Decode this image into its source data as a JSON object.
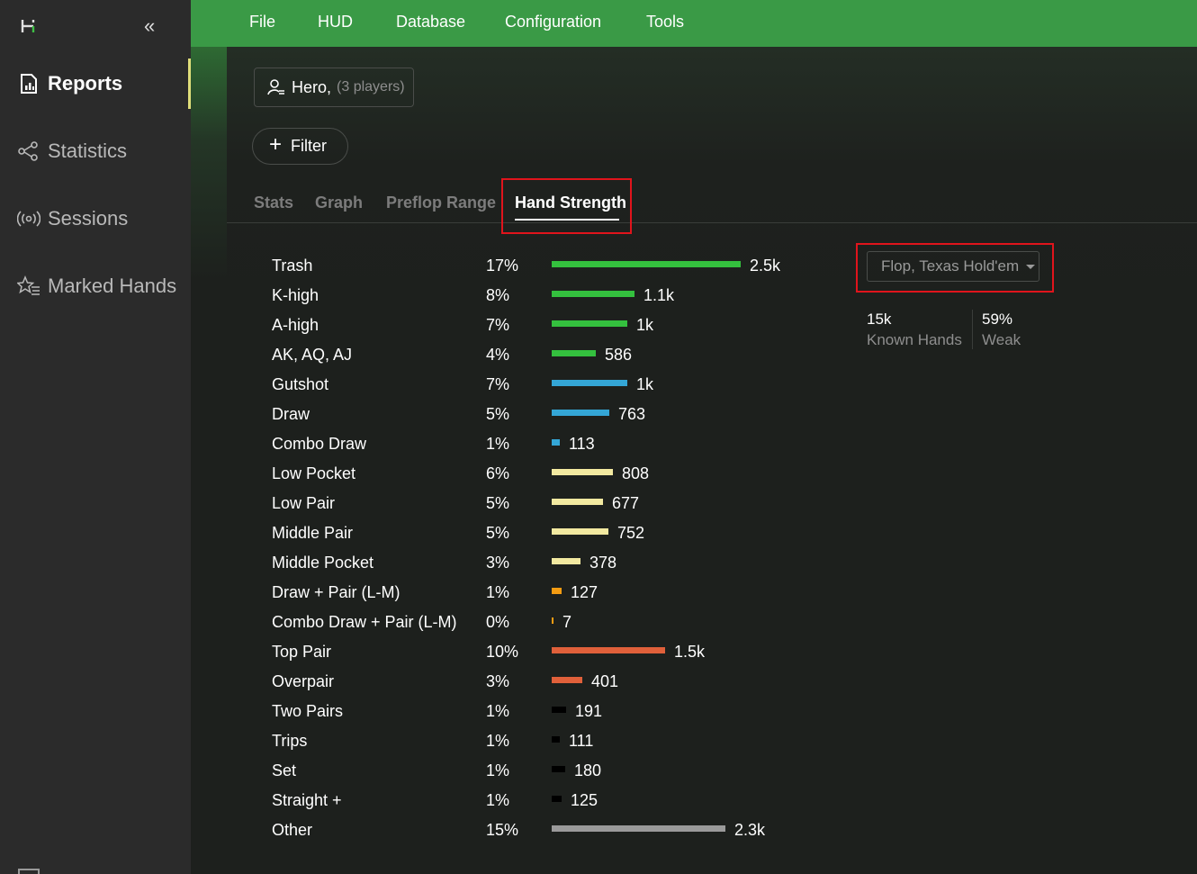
{
  "sidebar": {
    "collapse_icon": "double-chevron-left-icon",
    "items": [
      {
        "label": "Reports",
        "icon": "report-icon",
        "active": true
      },
      {
        "label": "Statistics",
        "icon": "share-nodes-icon",
        "active": false
      },
      {
        "label": "Sessions",
        "icon": "broadcast-icon",
        "active": false
      },
      {
        "label": "Marked Hands",
        "icon": "star-list-icon",
        "active": false
      }
    ]
  },
  "menu": [
    "File",
    "HUD",
    "Database",
    "Configuration",
    "Tools"
  ],
  "player_filter": {
    "name": "Hero,",
    "count": "(3 players)"
  },
  "filter_button": {
    "plus": "+",
    "label": "Filter"
  },
  "tabs": [
    {
      "label": "Stats",
      "active": false
    },
    {
      "label": "Graph",
      "active": false
    },
    {
      "label": "Preflop Range",
      "active": false
    },
    {
      "label": "Hand Strength",
      "active": true
    }
  ],
  "hand_strength": {
    "rows": [
      {
        "label": "Trash",
        "pct": "17%",
        "count": "2.5k",
        "value": 2500,
        "color": "#34c03e"
      },
      {
        "label": "K-high",
        "pct": "8%",
        "count": "1.1k",
        "value": 1100,
        "color": "#34c03e"
      },
      {
        "label": "A-high",
        "pct": "7%",
        "count": "1k",
        "value": 1000,
        "color": "#34c03e"
      },
      {
        "label": "AK, AQ, AJ",
        "pct": "4%",
        "count": "586",
        "value": 586,
        "color": "#34c03e"
      },
      {
        "label": "Gutshot",
        "pct": "7%",
        "count": "1k",
        "value": 1000,
        "color": "#34a6d6"
      },
      {
        "label": "Draw",
        "pct": "5%",
        "count": "763",
        "value": 763,
        "color": "#34a6d6"
      },
      {
        "label": "Combo Draw",
        "pct": "1%",
        "count": "113",
        "value": 113,
        "color": "#34a6d6"
      },
      {
        "label": "Low Pocket",
        "pct": "6%",
        "count": "808",
        "value": 808,
        "color": "#f2e9a0"
      },
      {
        "label": "Low Pair",
        "pct": "5%",
        "count": "677",
        "value": 677,
        "color": "#f2e9a0"
      },
      {
        "label": "Middle Pair",
        "pct": "5%",
        "count": "752",
        "value": 752,
        "color": "#f2e9a0"
      },
      {
        "label": "Middle Pocket",
        "pct": "3%",
        "count": "378",
        "value": 378,
        "color": "#f2e9a0"
      },
      {
        "label": "Draw + Pair (L-M)",
        "pct": "1%",
        "count": "127",
        "value": 127,
        "color": "#f39c12"
      },
      {
        "label": "Combo Draw + Pair (L-M)",
        "pct": "0%",
        "count": "7",
        "value": 7,
        "color": "#f39c12"
      },
      {
        "label": "Top Pair",
        "pct": "10%",
        "count": "1.5k",
        "value": 1500,
        "color": "#e0603a"
      },
      {
        "label": "Overpair",
        "pct": "3%",
        "count": "401",
        "value": 401,
        "color": "#e0603a"
      },
      {
        "label": "Two Pairs",
        "pct": "1%",
        "count": "191",
        "value": 191,
        "color": "#000000"
      },
      {
        "label": "Trips",
        "pct": "1%",
        "count": "111",
        "value": 111,
        "color": "#000000"
      },
      {
        "label": "Set",
        "pct": "1%",
        "count": "180",
        "value": 180,
        "color": "#000000"
      },
      {
        "label": "Straight +",
        "pct": "1%",
        "count": "125",
        "value": 125,
        "color": "#000000"
      },
      {
        "label": "Other",
        "pct": "15%",
        "count": "2.3k",
        "value": 2300,
        "color": "#9a9a9a"
      }
    ]
  },
  "street_select": {
    "value": "Flop, Texas Hold'em"
  },
  "summary": [
    {
      "value": "15k",
      "label": "Known Hands"
    },
    {
      "value": "59%",
      "label": "Weak"
    }
  ]
}
